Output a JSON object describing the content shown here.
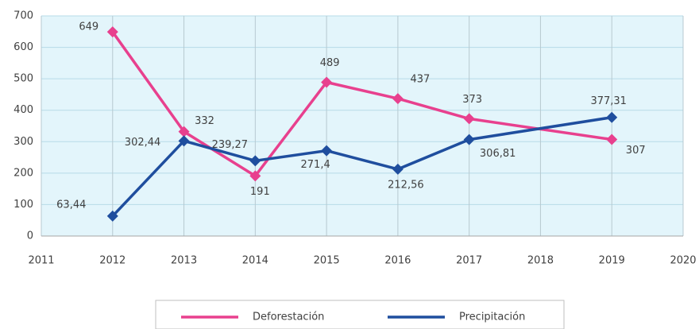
{
  "chart_data": {
    "type": "line",
    "x": [
      2012,
      2013,
      2014,
      2015,
      2016,
      2017,
      2019
    ],
    "series": [
      {
        "name": "Deforestación",
        "color": "#e8408e",
        "values": [
          649,
          332,
          191,
          489,
          437,
          373,
          307
        ]
      },
      {
        "name": "Precipitación",
        "color": "#1f4e9e",
        "values": [
          63.44,
          302.44,
          239.27,
          271.4,
          212.56,
          306.81,
          377.31
        ],
        "value_labels": [
          "63,44",
          "302,44",
          "239,27",
          "271,4",
          "212,56",
          "306,81",
          "377,31"
        ]
      }
    ],
    "xlim": [
      2011,
      2020
    ],
    "xticks": [
      2011,
      2012,
      2013,
      2014,
      2015,
      2016,
      2017,
      2018,
      2019,
      2020
    ],
    "ylim": [
      0,
      700
    ],
    "yticks": [
      0,
      100,
      200,
      300,
      400,
      500,
      600,
      700
    ],
    "grid": true,
    "legend": "bottom"
  }
}
